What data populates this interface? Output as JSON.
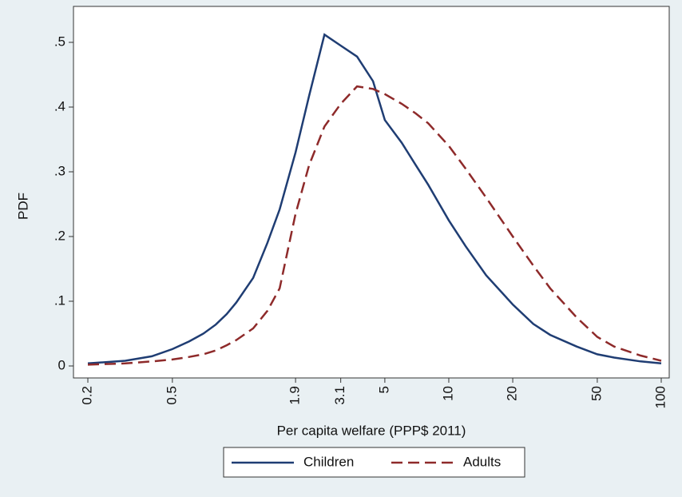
{
  "chart_data": {
    "type": "line",
    "xlabel": "Per capita welfare (PPP$ 2011)",
    "ylabel": "PDF",
    "xscale": "log",
    "x": [
      0.2,
      0.3,
      0.4,
      0.5,
      0.6,
      0.7,
      0.8,
      0.9,
      1,
      1.2,
      1.4,
      1.6,
      1.9,
      2.2,
      2.6,
      3.1,
      3.7,
      4.4,
      5,
      6,
      7,
      8,
      10,
      12,
      15,
      20,
      25,
      30,
      40,
      50,
      60,
      80,
      100
    ],
    "series": [
      {
        "name": "Children",
        "color": "#1f3d73",
        "dash": "solid",
        "values": [
          0.004,
          0.008,
          0.015,
          0.026,
          0.038,
          0.05,
          0.064,
          0.08,
          0.098,
          0.136,
          0.19,
          0.242,
          0.33,
          0.417,
          0.512,
          0.495,
          0.478,
          0.44,
          0.38,
          0.345,
          0.31,
          0.28,
          0.225,
          0.185,
          0.14,
          0.095,
          0.065,
          0.048,
          0.03,
          0.018,
          0.013,
          0.007,
          0.004
        ]
      },
      {
        "name": "Adults",
        "color": "#8e2a2a",
        "dash": "dashed",
        "values": [
          0.002,
          0.004,
          0.007,
          0.01,
          0.014,
          0.018,
          0.024,
          0.032,
          0.04,
          0.058,
          0.085,
          0.12,
          0.235,
          0.31,
          0.37,
          0.405,
          0.432,
          0.428,
          0.42,
          0.405,
          0.39,
          0.375,
          0.34,
          0.305,
          0.26,
          0.2,
          0.155,
          0.12,
          0.075,
          0.045,
          0.03,
          0.016,
          0.008
        ]
      }
    ],
    "xlim": [
      0.2,
      100
    ],
    "xticks": [
      0.2,
      0.5,
      1.9,
      3.1,
      5,
      10,
      20,
      50,
      100
    ],
    "ylim": [
      0,
      0.5
    ],
    "yticks": [
      0,
      {
        "value": 0.1,
        "label": ".1"
      },
      {
        "value": 0.2,
        "label": ".2"
      },
      {
        "value": 0.3,
        "label": ".3"
      },
      {
        "value": 0.4,
        "label": ".4"
      },
      {
        "value": 0.5,
        "label": ".5"
      }
    ],
    "legend": "bottom"
  }
}
